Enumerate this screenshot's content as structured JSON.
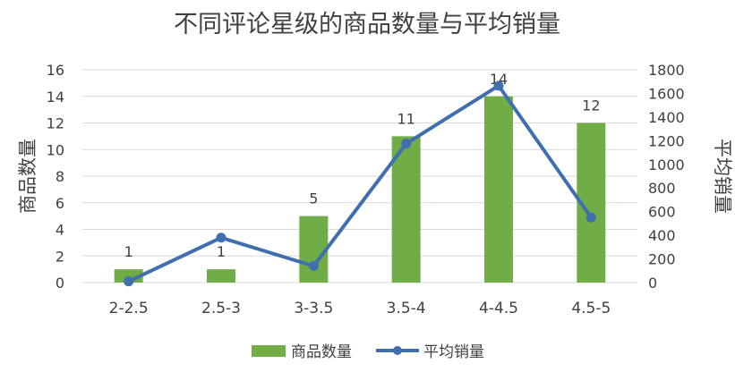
{
  "chart_data": {
    "type": "bar+line",
    "title": "不同评论星级的商品数量与平均销量",
    "categories": [
      "2-2.5",
      "2.5-3",
      "3-3.5",
      "3.5-4",
      "4-4.5",
      "4.5-5"
    ],
    "series": [
      {
        "name": "商品数量",
        "type": "bar",
        "axis": "left",
        "color": "#70AD47",
        "values": [
          1,
          1,
          5,
          11,
          14,
          12
        ],
        "data_labels": [
          "1",
          "1",
          "5",
          "11",
          "14",
          "12"
        ]
      },
      {
        "name": "平均销量",
        "type": "line",
        "axis": "right",
        "color": "#3F6FAE",
        "values": [
          10,
          380,
          140,
          1175,
          1665,
          550
        ]
      }
    ],
    "y_left": {
      "label": "商品数量",
      "range": [
        0,
        16
      ],
      "ticks": [
        "0",
        "2",
        "4",
        "6",
        "8",
        "10",
        "12",
        "14",
        "16"
      ]
    },
    "y_right": {
      "label": "平均销量",
      "range": [
        0,
        1800
      ],
      "ticks": [
        "0",
        "200",
        "400",
        "600",
        "800",
        "1000",
        "1200",
        "1400",
        "1600",
        "1800"
      ]
    },
    "grid": true,
    "legend_position": "bottom"
  }
}
